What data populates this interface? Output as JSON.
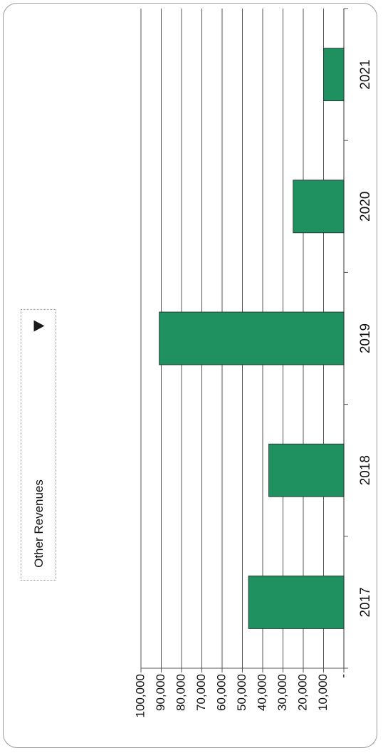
{
  "dropdown": {
    "selected": "Other Revenues",
    "icon": "triangle-down-icon"
  },
  "chart_data": {
    "type": "bar",
    "orientation": "rotated-90",
    "categories": [
      "2017",
      "2018",
      "2019",
      "2020",
      "2021"
    ],
    "values": [
      47000,
      37000,
      91000,
      25000,
      10000
    ],
    "ylim": [
      0,
      100000
    ],
    "yticks": [
      "-",
      "10,000",
      "20,000",
      "30,000",
      "40,000",
      "50,000",
      "60,000",
      "70,000",
      "80,000",
      "90,000",
      "100,000"
    ],
    "grid": true,
    "bar_color": "#1f9160",
    "title": "",
    "xlabel": "",
    "ylabel": ""
  }
}
